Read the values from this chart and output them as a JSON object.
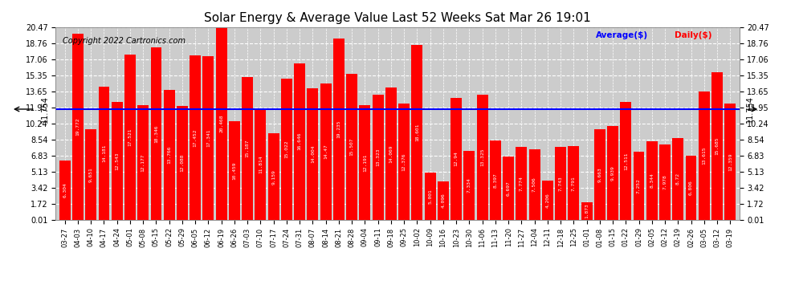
{
  "title": "Solar Energy & Average Value Last 52 Weeks Sat Mar 26 19:01",
  "copyright": "Copyright 2022 Cartronics.com",
  "avg_value": 11.754,
  "legend_avg": "Average($)",
  "legend_daily": "Daily($)",
  "bar_color": "#FF0000",
  "avg_line_color": "#0000FF",
  "plot_bg_color": "#CCCCCC",
  "grid_color": "#FFFFFF",
  "ylim_min": 0.01,
  "ylim_max": 20.47,
  "yticks": [
    0.01,
    1.72,
    3.42,
    5.13,
    6.83,
    8.54,
    10.24,
    11.95,
    13.65,
    15.35,
    17.06,
    18.76,
    20.47
  ],
  "dates": [
    "03-27",
    "04-03",
    "04-10",
    "04-17",
    "04-24",
    "05-01",
    "05-08",
    "05-15",
    "05-22",
    "05-29",
    "06-05",
    "06-12",
    "06-19",
    "06-26",
    "07-03",
    "07-10",
    "07-17",
    "07-24",
    "07-31",
    "08-07",
    "08-14",
    "08-21",
    "08-28",
    "09-04",
    "09-11",
    "09-18",
    "09-25",
    "10-02",
    "10-09",
    "10-16",
    "10-23",
    "10-30",
    "11-06",
    "11-13",
    "11-20",
    "11-27",
    "12-04",
    "12-11",
    "12-18",
    "12-25",
    "01-01",
    "01-08",
    "01-15",
    "01-22",
    "01-29",
    "02-05",
    "02-12",
    "02-19",
    "02-26",
    "03-05",
    "03-12",
    "03-19"
  ],
  "values": [
    6.304,
    19.772,
    9.651,
    14.181,
    12.543,
    17.521,
    12.177,
    18.346,
    13.766,
    12.088,
    17.452,
    17.341,
    20.468,
    10.459,
    15.187,
    11.814,
    9.159,
    15.022,
    16.646,
    14.004,
    14.47,
    19.235,
    15.507,
    12.191,
    13.323,
    14.069,
    12.376,
    18.601,
    5.001,
    4.096,
    12.94,
    7.334,
    13.325,
    8.397,
    6.697,
    7.774,
    7.506,
    4.206,
    7.743,
    7.791,
    1.873,
    9.663,
    9.939,
    12.511,
    7.252,
    8.344,
    7.978,
    8.72,
    6.806,
    13.615,
    15.685,
    12.359
  ]
}
